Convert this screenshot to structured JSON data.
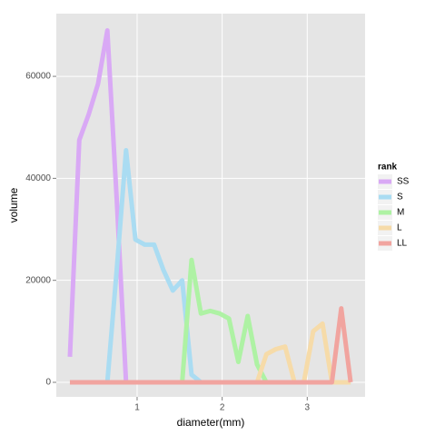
{
  "chart_data": {
    "type": "line",
    "x_label": "diameter(mm)",
    "y_label": "volume",
    "legend_title": "rank",
    "x": [
      0.21,
      0.32,
      0.43,
      0.54,
      0.65,
      0.76,
      0.87,
      0.98,
      1.09,
      1.2,
      1.31,
      1.42,
      1.53,
      1.64,
      1.75,
      1.86,
      1.97,
      2.08,
      2.19,
      2.3,
      2.41,
      2.52,
      2.63,
      2.74,
      2.85,
      2.96,
      3.07,
      3.18,
      3.29,
      3.4,
      3.51
    ],
    "series": [
      {
        "name": "SS",
        "color": "#d9a9f5",
        "values": [
          5000,
          47500,
          52500,
          58500,
          69000,
          36000,
          0,
          0,
          0,
          0,
          0,
          0,
          0,
          0,
          0,
          0,
          0,
          0,
          0,
          0,
          0,
          0,
          0,
          0,
          0,
          0,
          0,
          0,
          0,
          0,
          0
        ]
      },
      {
        "name": "S",
        "color": "#aadcf2",
        "values": [
          0,
          0,
          0,
          0,
          0,
          22000,
          45500,
          28000,
          27000,
          27000,
          22000,
          18000,
          20000,
          1500,
          0,
          0,
          0,
          0,
          0,
          0,
          0,
          0,
          0,
          0,
          0,
          0,
          0,
          0,
          0,
          0,
          0
        ]
      },
      {
        "name": "M",
        "color": "#aef2a4",
        "values": [
          0,
          0,
          0,
          0,
          0,
          0,
          0,
          0,
          0,
          0,
          0,
          0,
          0,
          24000,
          13500,
          14000,
          13500,
          12500,
          4000,
          13000,
          3500,
          0,
          0,
          0,
          0,
          0,
          0,
          0,
          0,
          0,
          0
        ]
      },
      {
        "name": "L",
        "color": "#f6dba9",
        "values": [
          0,
          0,
          0,
          0,
          0,
          0,
          0,
          0,
          0,
          0,
          0,
          0,
          0,
          0,
          0,
          0,
          0,
          0,
          0,
          0,
          0,
          5500,
          6500,
          7000,
          0,
          0,
          10000,
          11500,
          0,
          0,
          0
        ]
      },
      {
        "name": "LL",
        "color": "#f1a49f",
        "values": [
          0,
          0,
          0,
          0,
          0,
          0,
          0,
          0,
          0,
          0,
          0,
          0,
          0,
          0,
          0,
          0,
          0,
          0,
          0,
          0,
          0,
          0,
          0,
          0,
          0,
          0,
          0,
          0,
          0,
          14500,
          0
        ]
      }
    ],
    "xlim": [
      0.05,
      3.68
    ],
    "ylim": [
      -2850,
      72300
    ],
    "xticks": [
      1,
      2,
      3
    ],
    "yticks": [
      0,
      20000,
      40000,
      60000
    ],
    "grid": true,
    "legend_position": "right"
  }
}
